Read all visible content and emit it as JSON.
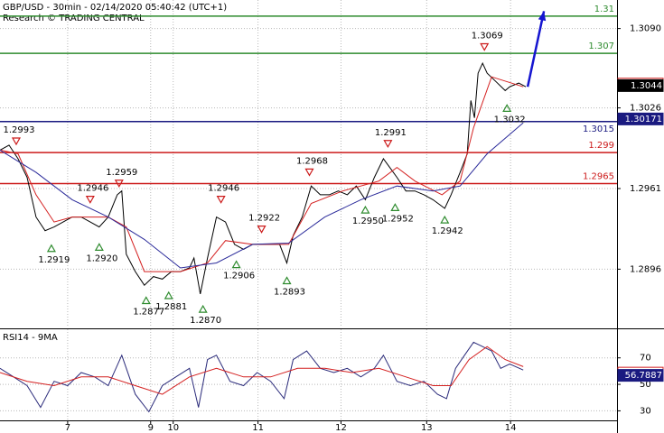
{
  "title": "GBP/USD - 30min - 02/14/2020 05:40:42 (UTC+1)",
  "subtitle": "Research © TRADING CENTRAL",
  "chart_data": [
    {
      "type": "line",
      "xlim": [
        0,
        342
      ],
      "ylim": [
        1.2849,
        1.3113
      ],
      "yticks": [
        {
          "value": 1.309,
          "label": "1.3090"
        },
        1.3026,
        1.2961,
        1.2896
      ],
      "grid": true,
      "series": [
        {
          "color": "#000000",
          "x": [
            0,
            5,
            10,
            15,
            20,
            25,
            30,
            35,
            40,
            45,
            50,
            55,
            60,
            65,
            67.5,
            70,
            75,
            80,
            85,
            90,
            95,
            100,
            105,
            107.5,
            111,
            115,
            120,
            125,
            130,
            135,
            140,
            145,
            150,
            155,
            159,
            162.5,
            167.5,
            172.5,
            177.5,
            182.5,
            187.5,
            192.5,
            197.5,
            202.5,
            207.5,
            212.5,
            216,
            220,
            225,
            230,
            235,
            240,
            246.5,
            250,
            255,
            259,
            261,
            263,
            265,
            267.5,
            270,
            275,
            280,
            282.5,
            287.5,
            291.5
          ],
          "values": [
            1.2992,
            1.2996,
            1.2985,
            1.297,
            1.2938,
            1.2927,
            1.293,
            1.2934,
            1.2938,
            1.2938,
            1.2934,
            1.293,
            1.2938,
            1.2956,
            1.2959,
            1.2908,
            1.2894,
            1.2883,
            1.289,
            1.2888,
            1.2894,
            1.2894,
            1.2897,
            1.2905,
            1.2876,
            1.2905,
            1.2938,
            1.2934,
            1.2916,
            1.2912,
            1.2916,
            1.2916,
            1.2916,
            1.2916,
            1.2901,
            1.2923,
            1.2938,
            1.2963,
            1.2956,
            1.2956,
            1.2959,
            1.2956,
            1.2963,
            1.2952,
            1.297,
            1.2985,
            1.2978,
            1.297,
            1.2959,
            1.2959,
            1.2956,
            1.2952,
            1.2945,
            1.2956,
            1.2974,
            1.2989,
            1.3032,
            1.3018,
            1.3054,
            1.3062,
            1.3054,
            1.3047,
            1.304,
            1.3043,
            1.3046,
            1.3043
          ]
        },
        {
          "color": "#d42020",
          "x": [
            0,
            10,
            20,
            30,
            40,
            50,
            60,
            70,
            80,
            100,
            115,
            125,
            140,
            160,
            172.5,
            190,
            210,
            220,
            230,
            245,
            255,
            262.5,
            272.5,
            290
          ],
          "values": [
            1.2992,
            1.2989,
            1.2956,
            1.2934,
            1.2938,
            1.2938,
            1.2938,
            1.293,
            1.2894,
            1.2894,
            1.2901,
            1.2919,
            1.2916,
            1.2916,
            1.2949,
            1.2959,
            1.2967,
            1.2978,
            1.2967,
            1.2956,
            1.2967,
            1.301,
            1.3051,
            1.3043
          ]
        },
        {
          "color": "#2a2a9a",
          "x": [
            0,
            20,
            40,
            60,
            80,
            100,
            120,
            140,
            160,
            180,
            200,
            220,
            240,
            255,
            270,
            290
          ],
          "values": [
            1.2992,
            1.2974,
            1.2952,
            1.2938,
            1.292,
            1.2897,
            1.2901,
            1.2916,
            1.2917,
            1.2938,
            1.2952,
            1.2963,
            1.2959,
            1.2963,
            1.2989,
            1.3014
          ]
        },
        {
          "color": "#1515d0",
          "arrow": true,
          "x": [
            292.5,
            301.5
          ],
          "values": [
            1.3043,
            1.3104
          ]
        }
      ],
      "levels": [
        {
          "value": 1.31,
          "color": "#2e8b2e"
        },
        {
          "value": 1.307,
          "color": "#2e8b2e"
        },
        {
          "value": 1.3015,
          "color": "#1a1a80"
        },
        {
          "value": 1.299,
          "color": "#cc1a1a"
        },
        {
          "value": 1.2965,
          "color": "#cc1a1a"
        }
      ],
      "annotations": [
        {
          "x": 9,
          "value": 1.2993,
          "label": "1.2993",
          "kind": "high"
        },
        {
          "x": 28.5,
          "value": 1.2919,
          "label": "1.2919",
          "kind": "low"
        },
        {
          "x": 50,
          "value": 1.2946,
          "label": "1.2946",
          "kind": "high"
        },
        {
          "x": 55,
          "value": 1.292,
          "label": "1.2920",
          "kind": "low"
        },
        {
          "x": 66,
          "value": 1.2959,
          "label": "1.2959",
          "kind": "high"
        },
        {
          "x": 81,
          "value": 1.2877,
          "label": "1.2877",
          "kind": "low"
        },
        {
          "x": 93.5,
          "value": 1.2881,
          "label": "1.2881",
          "kind": "low"
        },
        {
          "x": 112.5,
          "value": 1.287,
          "label": "1.2870",
          "kind": "low"
        },
        {
          "x": 122.5,
          "value": 1.2946,
          "label": "1.2946",
          "kind": "high"
        },
        {
          "x": 131,
          "value": 1.2906,
          "label": "1.2906",
          "kind": "low"
        },
        {
          "x": 145,
          "value": 1.2922,
          "label": "1.2922",
          "kind": "high"
        },
        {
          "x": 159,
          "value": 1.2893,
          "label": "1.2893",
          "kind": "low"
        },
        {
          "x": 171.5,
          "value": 1.2968,
          "label": "1.2968",
          "kind": "high"
        },
        {
          "x": 202.5,
          "value": 1.295,
          "label": "1.2950",
          "kind": "low"
        },
        {
          "x": 215,
          "value": 1.2991,
          "label": "1.2991",
          "kind": "high"
        },
        {
          "x": 219,
          "value": 1.2952,
          "label": "1.2952",
          "kind": "low"
        },
        {
          "x": 246.5,
          "value": 1.2942,
          "label": "1.2942",
          "kind": "low"
        },
        {
          "x": 268.5,
          "value": 1.3069,
          "label": "1.3069",
          "kind": "high"
        },
        {
          "x": 281,
          "value": 1.3032,
          "label": "1.3032",
          "kind": "low"
        }
      ],
      "price_tags": [
        {
          "value": 1.30452,
          "color": "#d42020",
          "filled": false
        },
        {
          "value": 1.3044,
          "color": "#000000",
          "filled": true
        },
        {
          "value": 1.30171,
          "color": "#1a1a80",
          "filled": true
        }
      ]
    },
    {
      "type": "line",
      "title": "RSI14 - 9MA",
      "xlim": [
        0,
        342
      ],
      "ylim": [
        22.8,
        91.6
      ],
      "yticks": [
        70,
        50,
        30
      ],
      "grid": true,
      "xticks": [
        {
          "value": 37.5,
          "label": "7"
        },
        {
          "value": 83.5,
          "label": "9"
        },
        {
          "value": 96,
          "label": "10"
        },
        {
          "value": 143,
          "label": "11"
        },
        {
          "value": 189,
          "label": "12"
        },
        {
          "value": 236.5,
          "label": "13"
        },
        {
          "value": 283,
          "label": "14"
        }
      ],
      "series": [
        {
          "color": "#2a2a7a",
          "x": [
            0,
            7.5,
            15,
            22.5,
            30,
            37.5,
            45,
            52.5,
            60,
            67.5,
            75,
            82.5,
            90,
            97.5,
            105,
            110,
            115,
            120,
            127.5,
            135,
            142.5,
            150,
            157.5,
            162.5,
            170,
            177.5,
            185,
            192.5,
            200,
            207.5,
            212.5,
            220,
            227.5,
            235,
            242.5,
            247.5,
            252.5,
            257.5,
            262.5,
            267.5,
            272.5,
            277.5,
            282.5,
            290
          ],
          "values": [
            62.1,
            55.6,
            49,
            32.6,
            52.3,
            49,
            58.9,
            55.6,
            49,
            72,
            42.5,
            29.3,
            49,
            55.6,
            62.1,
            32.6,
            68.7,
            72,
            52.3,
            49,
            58.9,
            52.3,
            39.2,
            68.7,
            75.2,
            62.1,
            58.9,
            62.1,
            55.6,
            62.1,
            72,
            52.3,
            49,
            52.3,
            42.5,
            39.2,
            62.1,
            72,
            81.8,
            78.5,
            75.2,
            62.1,
            65.4,
            60.8
          ]
        },
        {
          "color": "#d42020",
          "x": [
            0,
            15,
            30,
            45,
            60,
            75,
            90,
            105,
            120,
            135,
            150,
            165,
            180,
            195,
            210,
            225,
            240,
            250,
            260,
            270,
            280,
            290
          ],
          "values": [
            58.9,
            52.3,
            49,
            55.6,
            55.6,
            49,
            42.5,
            55.6,
            62.1,
            55.6,
            55.6,
            62.1,
            62.1,
            58.9,
            62.1,
            55.6,
            49,
            49,
            68.7,
            78.5,
            68.7,
            63.4
          ]
        }
      ],
      "price_tags": [
        {
          "value": 58.4627,
          "color": "#d42020",
          "filled": false
        },
        {
          "value": 56.7887,
          "color": "#1a1a80",
          "filled": true
        }
      ]
    }
  ]
}
